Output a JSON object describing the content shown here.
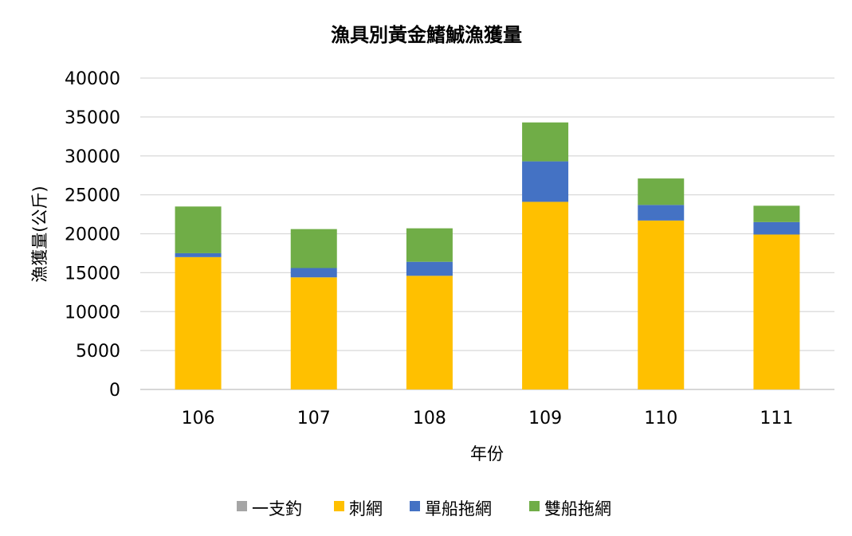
{
  "chart_data": {
    "type": "bar",
    "stacked": true,
    "title": "漁具別黃金鰭鯎漁獲量",
    "xlabel": "年份",
    "ylabel": "漁獲量(公斤)",
    "categories": [
      "106",
      "107",
      "108",
      "109",
      "110",
      "111"
    ],
    "ylim": [
      0,
      40000
    ],
    "yticks": [
      0,
      5000,
      10000,
      15000,
      20000,
      25000,
      30000,
      35000,
      40000
    ],
    "grid": true,
    "legend_position": "bottom",
    "series": [
      {
        "name": "一支釣",
        "color": "#A5A5A5",
        "values": [
          0,
          0,
          0,
          0,
          0,
          0
        ]
      },
      {
        "name": "刺網",
        "color": "#FFC000",
        "values": [
          17000,
          14400,
          14600,
          24100,
          21700,
          19900
        ]
      },
      {
        "name": "單船拖網",
        "color": "#4472C4",
        "values": [
          500,
          1200,
          1800,
          5200,
          2000,
          1600
        ]
      },
      {
        "name": "雙船拖網",
        "color": "#70AD47",
        "values": [
          6000,
          5000,
          4300,
          5000,
          3400,
          2100
        ]
      }
    ]
  }
}
